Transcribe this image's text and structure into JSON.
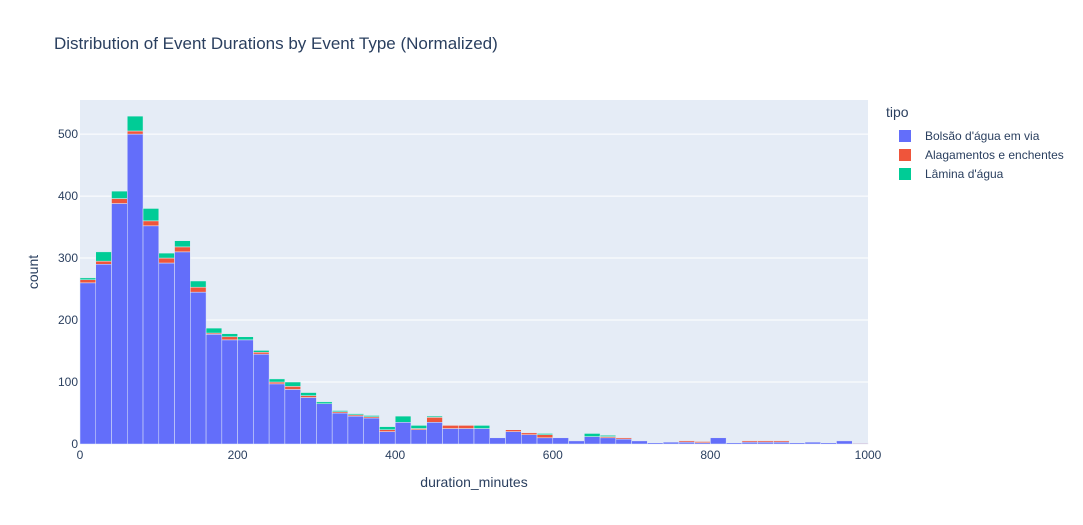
{
  "chart_data": {
    "type": "bar",
    "stacked": true,
    "title": "Distribution of Event Durations by Event Type (Normalized)",
    "xlabel": "duration_minutes",
    "ylabel": "count",
    "xlim": [
      0,
      1000
    ],
    "ylim": [
      0,
      555
    ],
    "x_ticks": [
      0,
      200,
      400,
      600,
      800,
      1000
    ],
    "y_ticks": [
      0,
      100,
      200,
      300,
      400,
      500
    ],
    "legend_title": "tipo",
    "legend_position": "right",
    "bin_width": 20,
    "bin_starts": [
      0,
      20,
      40,
      60,
      80,
      100,
      120,
      140,
      160,
      180,
      200,
      220,
      240,
      260,
      280,
      300,
      320,
      340,
      360,
      380,
      400,
      420,
      440,
      460,
      480,
      500,
      520,
      540,
      560,
      580,
      600,
      620,
      640,
      660,
      680,
      700,
      720,
      740,
      760,
      780,
      800,
      820,
      840,
      860,
      880,
      900,
      920,
      940,
      960,
      980
    ],
    "series": [
      {
        "name": "Bolsão d'água em via",
        "color": "#636efa",
        "values": [
          260,
          290,
          388,
          500,
          352,
          292,
          310,
          245,
          177,
          168,
          168,
          145,
          97,
          88,
          75,
          65,
          50,
          45,
          42,
          20,
          35,
          23,
          35,
          25,
          25,
          25,
          10,
          20,
          15,
          10,
          10,
          5,
          12,
          10,
          8,
          5,
          2,
          3,
          3,
          2,
          10,
          2,
          3,
          3,
          3,
          2,
          3,
          2,
          5,
          1
        ]
      },
      {
        "name": "Alagamentos e enchentes",
        "color": "#ef553b",
        "values": [
          5,
          5,
          8,
          5,
          8,
          8,
          8,
          8,
          2,
          5,
          0,
          3,
          3,
          5,
          3,
          0,
          2,
          2,
          2,
          3,
          0,
          2,
          8,
          5,
          5,
          0,
          0,
          3,
          3,
          5,
          0,
          0,
          0,
          2,
          2,
          0,
          0,
          0,
          2,
          2,
          0,
          0,
          2,
          2,
          2,
          0,
          0,
          0,
          0,
          1
        ]
      },
      {
        "name": "Lâmina d'água",
        "color": "#00cc96",
        "values": [
          3,
          15,
          12,
          24,
          20,
          8,
          10,
          10,
          8,
          5,
          5,
          3,
          5,
          7,
          5,
          3,
          2,
          2,
          2,
          5,
          10,
          5,
          2,
          0,
          0,
          5,
          0,
          0,
          0,
          2,
          0,
          0,
          5,
          2,
          0,
          0,
          0,
          0,
          0,
          0,
          0,
          0,
          0,
          0,
          0,
          0,
          0,
          0,
          0,
          0
        ]
      }
    ]
  }
}
